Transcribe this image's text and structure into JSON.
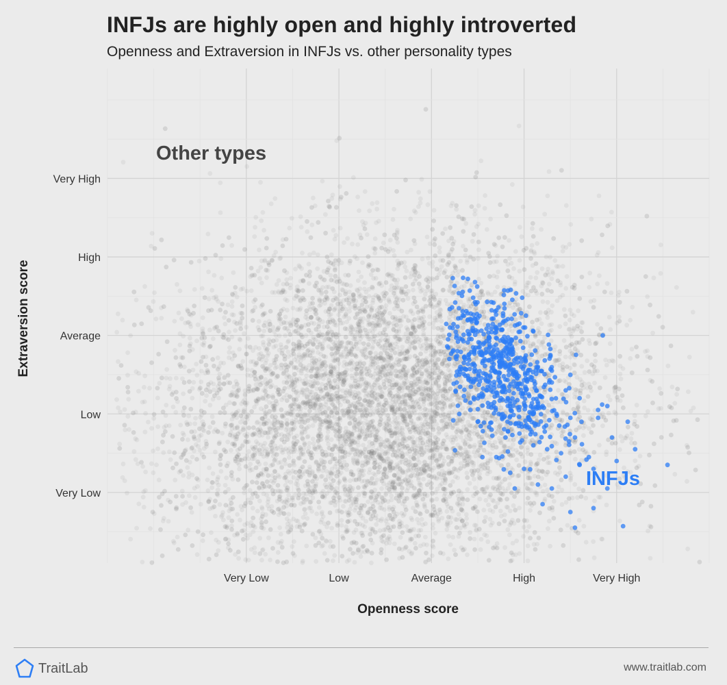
{
  "header": {
    "title": "INFJs are highly open and highly introverted",
    "subtitle": "Openness and Extraversion in INFJs vs. other personality types"
  },
  "footer": {
    "brand": "TraitLab",
    "brand_icon": "pentagon-icon",
    "url": "www.traitlab.com"
  },
  "colors": {
    "background": "#ebebeb",
    "grid_major": "#d3d3d3",
    "grid_minor": "#e2e2e2",
    "other_points": "#7f7f7f",
    "infj_points": "#2d7ef5",
    "logo": "#2d7ef5"
  },
  "chart_data": {
    "type": "scatter",
    "xlabel": "Openness score",
    "ylabel": "Extraversion score",
    "x_ticks": [
      {
        "value": 1,
        "label": "Very Low"
      },
      {
        "value": 2,
        "label": "Low"
      },
      {
        "value": 3,
        "label": "Average"
      },
      {
        "value": 4,
        "label": "High"
      },
      {
        "value": 5,
        "label": "Very High"
      }
    ],
    "y_ticks": [
      {
        "value": 1,
        "label": "Very Low"
      },
      {
        "value": 2,
        "label": "Low"
      },
      {
        "value": 3,
        "label": "Average"
      },
      {
        "value": 4,
        "label": "High"
      },
      {
        "value": 5,
        "label": "Very High"
      }
    ],
    "xlim": [
      -0.5,
      6.0
    ],
    "ylim": [
      0.1,
      6.4
    ],
    "grid": true,
    "annotations": [
      {
        "text": "Other types",
        "x": 1.5,
        "y": 5.3,
        "series": "Other types"
      },
      {
        "text": "INFJs",
        "x": 5.3,
        "y": 0.7,
        "series": "INFJs"
      }
    ],
    "series": [
      {
        "name": "Other types",
        "distribution": "dense cloud of thousands of points",
        "center": [
          2.5,
          2.1
        ],
        "spread": [
          1.2,
          1.1
        ],
        "count": 9000,
        "x_range": [
          -0.4,
          5.9
        ],
        "y_range": [
          0.1,
          6.2
        ]
      },
      {
        "name": "INFJs",
        "points": [
          [
            3.23,
            3.73
          ],
          [
            3.25,
            3.63
          ],
          [
            3.45,
            3.48
          ],
          [
            3.65,
            3.32
          ],
          [
            3.98,
            3.48
          ],
          [
            3.2,
            3.1
          ],
          [
            3.35,
            3.25
          ],
          [
            3.5,
            3.05
          ],
          [
            3.62,
            2.98
          ],
          [
            3.78,
            3.18
          ],
          [
            3.95,
            3.15
          ],
          [
            4.1,
            3.05
          ],
          [
            3.28,
            2.8
          ],
          [
            3.4,
            2.75
          ],
          [
            3.55,
            2.65
          ],
          [
            3.7,
            2.72
          ],
          [
            3.85,
            2.8
          ],
          [
            4.0,
            2.7
          ],
          [
            4.15,
            2.6
          ],
          [
            4.3,
            2.55
          ],
          [
            3.18,
            2.95
          ],
          [
            3.3,
            2.5
          ],
          [
            3.45,
            2.4
          ],
          [
            3.6,
            2.3
          ],
          [
            3.75,
            2.2
          ],
          [
            3.9,
            2.15
          ],
          [
            4.05,
            2.25
          ],
          [
            4.2,
            2.1
          ],
          [
            4.35,
            2.0
          ],
          [
            4.5,
            1.95
          ],
          [
            3.3,
            2.0
          ],
          [
            3.5,
            1.9
          ],
          [
            3.65,
            1.8
          ],
          [
            3.8,
            1.7
          ],
          [
            3.95,
            1.75
          ],
          [
            4.1,
            1.6
          ],
          [
            4.25,
            1.55
          ],
          [
            4.4,
            1.5
          ],
          [
            4.55,
            1.7
          ],
          [
            4.7,
            1.45
          ],
          [
            4.3,
            2.4
          ],
          [
            4.45,
            2.3
          ],
          [
            4.6,
            2.2
          ],
          [
            4.8,
            2.05
          ],
          [
            4.9,
            2.1
          ],
          [
            3.7,
            1.45
          ],
          [
            3.85,
            1.25
          ],
          [
            4.0,
            1.3
          ],
          [
            4.15,
            1.1
          ],
          [
            4.3,
            1.05
          ],
          [
            4.45,
            1.2
          ],
          [
            4.6,
            1.35
          ],
          [
            4.75,
            1.3
          ],
          [
            4.9,
            1.05
          ],
          [
            5.0,
            1.4
          ],
          [
            5.2,
            1.55
          ],
          [
            5.55,
            1.35
          ],
          [
            4.95,
            1.7
          ],
          [
            4.8,
            1.95
          ],
          [
            4.5,
            0.75
          ],
          [
            4.55,
            0.55
          ],
          [
            4.75,
            0.8
          ],
          [
            5.07,
            0.57
          ],
          [
            3.55,
            1.45
          ],
          [
            3.9,
            1.05
          ],
          [
            4.2,
            0.85
          ],
          [
            3.35,
            2.65
          ],
          [
            3.52,
            2.85
          ],
          [
            3.88,
            2.55
          ],
          [
            4.02,
            2.45
          ],
          [
            3.68,
            2.55
          ],
          [
            3.42,
            2.05
          ],
          [
            4.12,
            1.85
          ],
          [
            4.38,
            1.85
          ],
          [
            4.62,
            1.9
          ],
          [
            5.12,
            1.9
          ],
          [
            4.85,
            3.0
          ]
        ]
      }
    ]
  }
}
